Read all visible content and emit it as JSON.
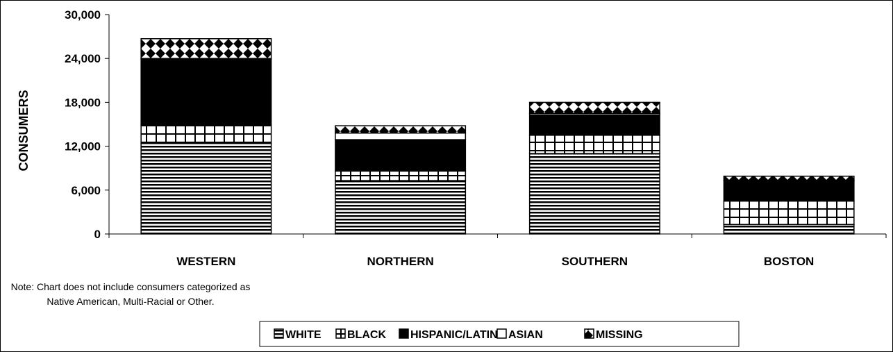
{
  "chart_data": {
    "type": "bar",
    "stacked": true,
    "title": "",
    "xlabel": "",
    "ylabel": "CONSUMERS",
    "ylim": [
      0,
      30000
    ],
    "yticks": [
      "0",
      "6,000",
      "12,000",
      "18,000",
      "24,000",
      "30,000"
    ],
    "ytick_values": [
      0,
      6000,
      12000,
      18000,
      24000,
      30000
    ],
    "categories": [
      "WESTERN",
      "NORTHERN",
      "SOUTHERN",
      "BOSTON"
    ],
    "series": [
      {
        "name": "WHITE",
        "values": [
          12400,
          7300,
          11000,
          1300
        ]
      },
      {
        "name": "BLACK",
        "values": [
          2500,
          1300,
          2500,
          3200
        ]
      },
      {
        "name": "HISPANIC/LATINO",
        "values": [
          9000,
          4300,
          2800,
          2800
        ]
      },
      {
        "name": "ASIAN",
        "values": [
          100,
          900,
          200,
          50
        ]
      },
      {
        "name": "MISSING",
        "values": [
          2700,
          1000,
          1500,
          550
        ]
      }
    ],
    "legend_position": "bottom",
    "grid": false,
    "note": "Note: Chart does not include consumers categorized as Native American, Multi-Racial or Other."
  }
}
